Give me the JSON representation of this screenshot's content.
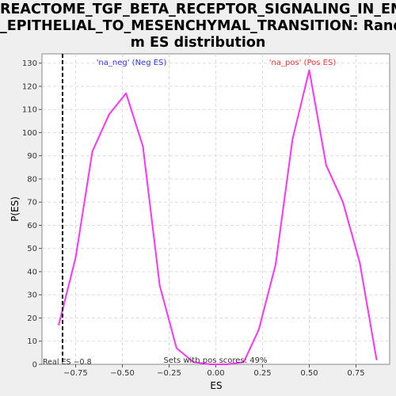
{
  "title_lines": [
    "REACTOME_TGF_BETA_RECEPTOR_SIGNALING_IN_EMT",
    "_EPITHELIAL_TO_MESENCHYMAL_TRANSITION: Rando",
    "m ES distribution"
  ],
  "colors": {
    "background": "#efefef",
    "plot_bg": "#ffffff",
    "line": "#ff33ff",
    "neg_label": "#3333ff",
    "pos_label": "#ff3333",
    "real_es_line": "#000000",
    "grid": "#dddddd"
  },
  "chart_data": {
    "type": "line",
    "title": "REACTOME_TGF_BETA_RECEPTOR_SIGNALING_IN_EMT_EPITHELIAL_TO_MESENCHYMAL_TRANSITION: Random ES distribution",
    "xlabel": "ES",
    "ylabel": "P(ES)",
    "xlim": [
      -0.93,
      0.93
    ],
    "ylim": [
      0,
      134
    ],
    "xticks": [
      -0.75,
      -0.5,
      -0.25,
      0.0,
      0.25,
      0.5,
      0.75
    ],
    "xtick_labels": [
      "−0.75",
      "−0.50",
      "−0.25",
      "0.00",
      "0.25",
      "0.50",
      "0.75"
    ],
    "yticks": [
      0,
      10,
      20,
      30,
      40,
      50,
      60,
      70,
      80,
      90,
      100,
      110,
      120,
      130
    ],
    "grid": true,
    "series": [
      {
        "x": [
          -0.84,
          -0.75,
          -0.66,
          -0.57,
          -0.48,
          -0.39,
          -0.3,
          -0.21,
          -0.12,
          -0.03,
          0.06,
          0.15,
          0.23,
          0.32,
          0.41,
          0.5,
          0.59,
          0.68,
          0.77,
          0.86
        ],
        "y": [
          17,
          46,
          92,
          108,
          117,
          94,
          34,
          7,
          1,
          0,
          0,
          1,
          15,
          43,
          97,
          127,
          86,
          70,
          44,
          2
        ]
      }
    ],
    "annotations": {
      "neg_label": "'na_neg' (Neg ES)",
      "pos_label": "'na_pos' (Pos ES)",
      "real_es_label": "Real ES −0.8",
      "real_es_value": -0.82,
      "pos_scores_label": "Sets with pos scores: 49%"
    }
  }
}
